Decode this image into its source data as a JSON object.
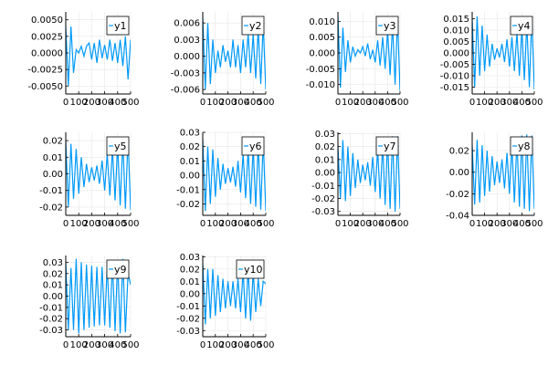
{
  "colors": {
    "series": "#009af9",
    "grid": "#e6e6e6",
    "axis": "#000000",
    "legend_border": "#000000"
  },
  "chart_data": [
    {
      "type": "line",
      "name": "y1",
      "legend": "y1",
      "legend_position": "top-right",
      "grid": true,
      "xlim": [
        0,
        500
      ],
      "xticks": [
        0,
        100,
        200,
        300,
        400,
        500
      ],
      "xticklabels": [
        "0",
        "100",
        "200",
        "300",
        "400",
        "500"
      ],
      "ylim": [
        -0.0062,
        0.0062
      ],
      "yticks": [
        -0.005,
        -0.0025,
        0,
        0.0025,
        0.005
      ],
      "yticklabels": [
        "-0.0050",
        "-0.0025",
        "0.0000",
        "0.0025",
        "0.0050"
      ],
      "x": [
        0,
        20,
        40,
        60,
        80,
        100,
        120,
        140,
        160,
        180,
        200,
        220,
        240,
        260,
        280,
        300,
        320,
        340,
        360,
        380,
        400,
        420,
        440,
        460,
        480,
        500
      ],
      "y": [
        0.004,
        -0.005,
        0.004,
        -0.003,
        0.0005,
        0.0,
        0.001,
        -0.0005,
        0.001,
        0.0015,
        -0.001,
        0.0015,
        -0.0015,
        0.002,
        -0.0008,
        0.0012,
        -0.001,
        0.002,
        -0.0012,
        0.0015,
        -0.0015,
        0.002,
        -0.002,
        0.0025,
        -0.004,
        0.002
      ]
    },
    {
      "type": "line",
      "name": "y2",
      "legend": "y2",
      "legend_position": "top-right",
      "grid": true,
      "xlim": [
        0,
        500
      ],
      "xticks": [
        0,
        100,
        200,
        300,
        400,
        500
      ],
      "xticklabels": [
        "0",
        "100",
        "200",
        "300",
        "400",
        "500"
      ],
      "ylim": [
        -0.0068,
        0.008
      ],
      "yticks": [
        -0.006,
        -0.003,
        0,
        0.003,
        0.006
      ],
      "yticklabels": [
        "-0.006",
        "-0.003",
        "0.000",
        "0.003",
        "0.006"
      ],
      "x": [
        0,
        20,
        40,
        60,
        80,
        100,
        120,
        140,
        160,
        180,
        200,
        220,
        240,
        260,
        280,
        300,
        320,
        340,
        360,
        380,
        400,
        420,
        440,
        460,
        480,
        500
      ],
      "y": [
        0.007,
        -0.006,
        0.006,
        -0.005,
        0.003,
        -0.003,
        0.001,
        -0.002,
        0.002,
        -0.001,
        0.001,
        -0.002,
        0.003,
        -0.002,
        0.002,
        -0.003,
        0.003,
        -0.002,
        0.004,
        -0.003,
        0.004,
        -0.004,
        0.005,
        -0.005,
        0.006,
        -0.006
      ]
    },
    {
      "type": "line",
      "name": "y3",
      "legend": "y3",
      "legend_position": "top-right",
      "grid": true,
      "xlim": [
        0,
        500
      ],
      "xticks": [
        0,
        100,
        200,
        300,
        400,
        500
      ],
      "xticklabels": [
        "0",
        "100",
        "200",
        "300",
        "400",
        "500"
      ],
      "ylim": [
        -0.013,
        0.013
      ],
      "yticks": [
        -0.01,
        -0.005,
        0,
        0.005,
        0.01
      ],
      "yticklabels": [
        "-0.010",
        "-0.005",
        "0.000",
        "0.005",
        "0.010"
      ],
      "x": [
        0,
        20,
        40,
        60,
        80,
        100,
        120,
        140,
        160,
        180,
        200,
        220,
        240,
        260,
        280,
        300,
        320,
        340,
        360,
        380,
        400,
        420,
        440,
        460,
        480,
        500
      ],
      "y": [
        0.012,
        -0.011,
        0.008,
        -0.006,
        0.004,
        -0.003,
        0.002,
        -0.001,
        0.001,
        0.0,
        0.002,
        -0.001,
        0.003,
        -0.002,
        0.001,
        -0.003,
        0.004,
        -0.004,
        0.005,
        -0.005,
        0.007,
        -0.007,
        0.009,
        -0.01,
        0.011,
        -0.012
      ]
    },
    {
      "type": "line",
      "name": "y4",
      "legend": "y4",
      "legend_position": "top-right",
      "grid": true,
      "xlim": [
        0,
        500
      ],
      "xticks": [
        0,
        100,
        200,
        300,
        400,
        500
      ],
      "xticklabels": [
        "0",
        "100",
        "200",
        "300",
        "400",
        "500"
      ],
      "ylim": [
        -0.018,
        0.018
      ],
      "yticks": [
        -0.015,
        -0.01,
        -0.005,
        0,
        0.005,
        0.01,
        0.015
      ],
      "yticklabels": [
        "-0.015",
        "-0.010",
        "-0.005",
        "0.000",
        "0.005",
        "0.010",
        "0.015"
      ],
      "x": [
        0,
        20,
        40,
        60,
        80,
        100,
        120,
        140,
        160,
        180,
        200,
        220,
        240,
        260,
        280,
        300,
        320,
        340,
        360,
        380,
        400,
        420,
        440,
        460,
        480,
        500
      ],
      "y": [
        0.015,
        -0.015,
        0.016,
        -0.01,
        0.012,
        -0.008,
        0.008,
        -0.006,
        0.004,
        -0.003,
        0.002,
        -0.002,
        0.004,
        -0.004,
        0.006,
        -0.006,
        0.007,
        -0.008,
        0.009,
        -0.01,
        0.011,
        -0.012,
        0.013,
        -0.015,
        0.016,
        -0.016
      ]
    },
    {
      "type": "line",
      "name": "y5",
      "legend": "y5",
      "legend_position": "top-right",
      "grid": true,
      "xlim": [
        0,
        500
      ],
      "xticks": [
        0,
        100,
        200,
        300,
        400,
        500
      ],
      "xticklabels": [
        "0",
        "100",
        "200",
        "300",
        "400",
        "500"
      ],
      "ylim": [
        -0.025,
        0.025
      ],
      "yticks": [
        -0.02,
        -0.01,
        0,
        0.01,
        0.02
      ],
      "yticklabels": [
        "-0.02",
        "-0.01",
        "0.00",
        "0.01",
        "0.02"
      ],
      "x": [
        0,
        20,
        40,
        60,
        80,
        100,
        120,
        140,
        160,
        180,
        200,
        220,
        240,
        260,
        280,
        300,
        320,
        340,
        360,
        380,
        400,
        420,
        440,
        460,
        480,
        500
      ],
      "y": [
        0.02,
        -0.02,
        0.018,
        -0.015,
        0.015,
        -0.012,
        0.01,
        -0.008,
        0.006,
        -0.005,
        0.004,
        -0.004,
        0.005,
        -0.006,
        0.008,
        -0.01,
        0.012,
        -0.013,
        0.015,
        -0.016,
        0.018,
        -0.019,
        0.02,
        -0.021,
        0.022,
        -0.022
      ]
    },
    {
      "type": "line",
      "name": "y6",
      "legend": "y6",
      "legend_position": "top-right",
      "grid": true,
      "xlim": [
        0,
        500
      ],
      "xticks": [
        0,
        100,
        200,
        300,
        400,
        500
      ],
      "xticklabels": [
        "0",
        "100",
        "200",
        "300",
        "400",
        "500"
      ],
      "ylim": [
        -0.028,
        0.03
      ],
      "yticks": [
        -0.02,
        -0.01,
        0,
        0.01,
        0.02,
        0.03
      ],
      "yticklabels": [
        "-0.02",
        "-0.01",
        "0.00",
        "0.01",
        "0.02",
        "0.03"
      ],
      "x": [
        0,
        20,
        40,
        60,
        80,
        100,
        120,
        140,
        160,
        180,
        200,
        220,
        240,
        260,
        280,
        300,
        320,
        340,
        360,
        380,
        400,
        420,
        440,
        460,
        480,
        500
      ],
      "y": [
        0.025,
        -0.025,
        0.02,
        -0.02,
        0.018,
        -0.015,
        0.012,
        -0.01,
        0.008,
        -0.006,
        0.005,
        -0.005,
        0.006,
        -0.008,
        0.01,
        -0.012,
        0.015,
        -0.016,
        0.018,
        -0.02,
        0.02,
        -0.022,
        0.022,
        -0.024,
        0.025,
        -0.025
      ]
    },
    {
      "type": "line",
      "name": "y7",
      "legend": "y7",
      "legend_position": "top-right",
      "grid": true,
      "xlim": [
        0,
        500
      ],
      "xticks": [
        0,
        100,
        200,
        300,
        400,
        500
      ],
      "xticklabels": [
        "0",
        "100",
        "200",
        "300",
        "400",
        "500"
      ],
      "ylim": [
        -0.033,
        0.031
      ],
      "yticks": [
        -0.03,
        -0.02,
        -0.01,
        0,
        0.01,
        0.02,
        0.03
      ],
      "yticklabels": [
        "-0.03",
        "-0.02",
        "-0.01",
        "0.00",
        "0.01",
        "0.02",
        "0.03"
      ],
      "x": [
        0,
        20,
        40,
        60,
        80,
        100,
        120,
        140,
        160,
        180,
        200,
        220,
        240,
        260,
        280,
        300,
        320,
        340,
        360,
        380,
        400,
        420,
        440,
        460,
        480,
        500
      ],
      "y": [
        0.02,
        -0.02,
        0.025,
        -0.022,
        0.02,
        -0.018,
        0.015,
        -0.012,
        0.01,
        -0.008,
        0.006,
        -0.006,
        0.008,
        -0.01,
        0.012,
        -0.015,
        0.018,
        -0.02,
        0.022,
        -0.025,
        0.026,
        -0.028,
        0.028,
        -0.03,
        0.028,
        -0.028
      ]
    },
    {
      "type": "line",
      "name": "y8",
      "legend": "y8",
      "legend_position": "top-right",
      "grid": true,
      "xlim": [
        0,
        500
      ],
      "xticks": [
        0,
        100,
        200,
        300,
        400,
        500
      ],
      "xticklabels": [
        "0",
        "100",
        "200",
        "300",
        "400",
        "500"
      ],
      "ylim": [
        -0.04,
        0.037
      ],
      "yticks": [
        -0.04,
        -0.02,
        0,
        0.02
      ],
      "yticklabels": [
        "-0.04",
        "-0.02",
        "0.00",
        "0.02"
      ],
      "x": [
        0,
        20,
        40,
        60,
        80,
        100,
        120,
        140,
        160,
        180,
        200,
        220,
        240,
        260,
        280,
        300,
        320,
        340,
        360,
        380,
        400,
        420,
        440,
        460,
        480,
        500
      ],
      "y": [
        0.025,
        -0.03,
        0.03,
        -0.028,
        0.025,
        -0.022,
        0.02,
        -0.018,
        0.015,
        -0.012,
        0.01,
        -0.01,
        0.012,
        -0.015,
        0.018,
        -0.02,
        0.025,
        -0.028,
        0.03,
        -0.032,
        0.034,
        -0.034,
        0.035,
        -0.036,
        0.034,
        -0.034
      ]
    },
    {
      "type": "line",
      "name": "y9",
      "legend": "y9",
      "legend_position": "top-right",
      "grid": true,
      "xlim": [
        0,
        500
      ],
      "xticks": [
        0,
        100,
        200,
        300,
        400,
        500
      ],
      "xticklabels": [
        "0",
        "100",
        "200",
        "300",
        "400",
        "500"
      ],
      "ylim": [
        -0.036,
        0.036
      ],
      "yticks": [
        -0.03,
        -0.02,
        -0.01,
        0,
        0.01,
        0.02,
        0.03
      ],
      "yticklabels": [
        "-0.03",
        "-0.02",
        "-0.01",
        "0.00",
        "0.01",
        "0.02",
        "0.03"
      ],
      "x": [
        0,
        20,
        40,
        60,
        80,
        100,
        120,
        140,
        160,
        180,
        200,
        220,
        240,
        260,
        280,
        300,
        320,
        340,
        360,
        380,
        400,
        420,
        440,
        460,
        480,
        500
      ],
      "y": [
        0.03,
        -0.03,
        0.025,
        -0.03,
        0.033,
        -0.033,
        0.03,
        -0.03,
        0.028,
        -0.028,
        0.027,
        -0.027,
        0.026,
        -0.026,
        0.026,
        -0.026,
        0.027,
        -0.028,
        0.03,
        -0.031,
        0.032,
        -0.033,
        0.033,
        -0.032,
        0.02,
        0.01
      ]
    },
    {
      "type": "line",
      "name": "y10",
      "legend": "y10",
      "legend_position": "top-right",
      "grid": true,
      "xlim": [
        0,
        500
      ],
      "xticks": [
        0,
        100,
        200,
        300,
        400,
        500
      ],
      "xticklabels": [
        "0",
        "100",
        "200",
        "300",
        "400",
        "500"
      ],
      "ylim": [
        -0.035,
        0.031
      ],
      "yticks": [
        -0.03,
        -0.02,
        -0.01,
        0,
        0.01,
        0.02,
        0.03
      ],
      "yticklabels": [
        "-0.03",
        "-0.02",
        "-0.01",
        "0.00",
        "0.01",
        "0.02",
        "0.03"
      ],
      "x": [
        0,
        20,
        40,
        60,
        80,
        100,
        120,
        140,
        160,
        180,
        200,
        220,
        240,
        260,
        280,
        300,
        320,
        340,
        360,
        380,
        400,
        420,
        440,
        460,
        480,
        500
      ],
      "y": [
        0.025,
        -0.025,
        0.02,
        -0.02,
        0.02,
        -0.018,
        0.015,
        -0.015,
        0.012,
        -0.012,
        0.01,
        -0.01,
        0.01,
        -0.012,
        0.012,
        -0.015,
        0.018,
        -0.02,
        0.02,
        -0.022,
        0.018,
        -0.015,
        0.012,
        -0.01,
        0.01,
        0.008
      ]
    }
  ]
}
